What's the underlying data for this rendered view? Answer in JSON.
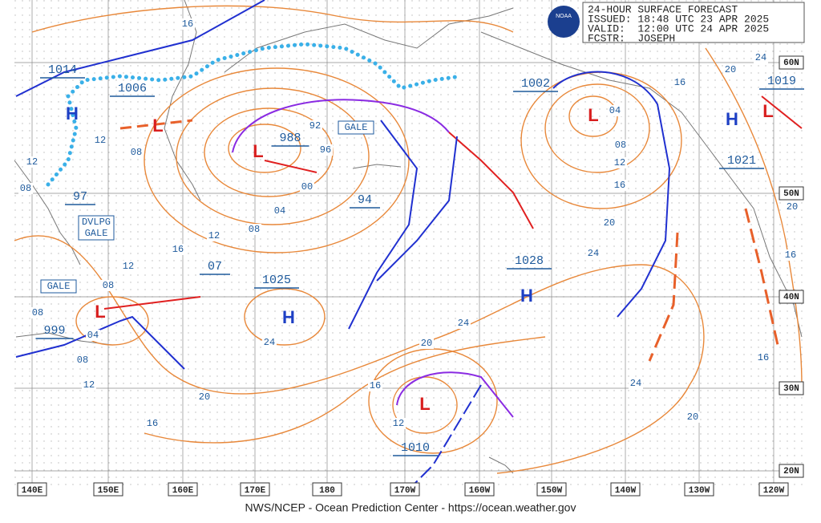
{
  "header": {
    "title": "24-HOUR SURFACE FORECAST",
    "issued": "ISSUED: 18:48 UTC 23 APR 2025",
    "valid": "VALID:  12:00 UTC 24 APR 2025",
    "forecaster": "FCSTR:  JOSEPH",
    "logo": "NOAA"
  },
  "symbols": [
    "H",
    "L",
    "L",
    "L",
    "H",
    "H",
    "L",
    "H",
    "L",
    "L"
  ],
  "pressure_labels": [
    "1014",
    "1006",
    "988",
    "97",
    "94",
    "07",
    "1025",
    "999",
    "1002",
    "1028",
    "1021",
    "1019",
    "1010"
  ],
  "isobar_labels": [
    "16",
    "12",
    "08",
    "12",
    "08",
    "92",
    "96",
    "00",
    "04",
    "08",
    "12",
    "16",
    "12",
    "08",
    "08",
    "04",
    "08",
    "12",
    "24",
    "20",
    "16",
    "20",
    "24",
    "16",
    "12",
    "04",
    "08",
    "12",
    "16",
    "20",
    "24",
    "24",
    "20",
    "16",
    "20",
    "24",
    "20",
    "16",
    "16"
  ],
  "warnings": [
    {
      "lines": [
        "GALE"
      ]
    },
    {
      "lines": [
        "DVLPG",
        "GALE"
      ]
    },
    {
      "lines": [
        "GALE"
      ]
    }
  ],
  "longitudes": [
    "140E",
    "150E",
    "160E",
    "170E",
    "180",
    "170W",
    "160W",
    "150W",
    "140W",
    "130W",
    "120W"
  ],
  "latitudes": [
    "60N",
    "50N",
    "40N",
    "30N",
    "20N"
  ],
  "footer": "NWS/NCEP - Ocean Prediction Center - https://ocean.weather.gov"
}
